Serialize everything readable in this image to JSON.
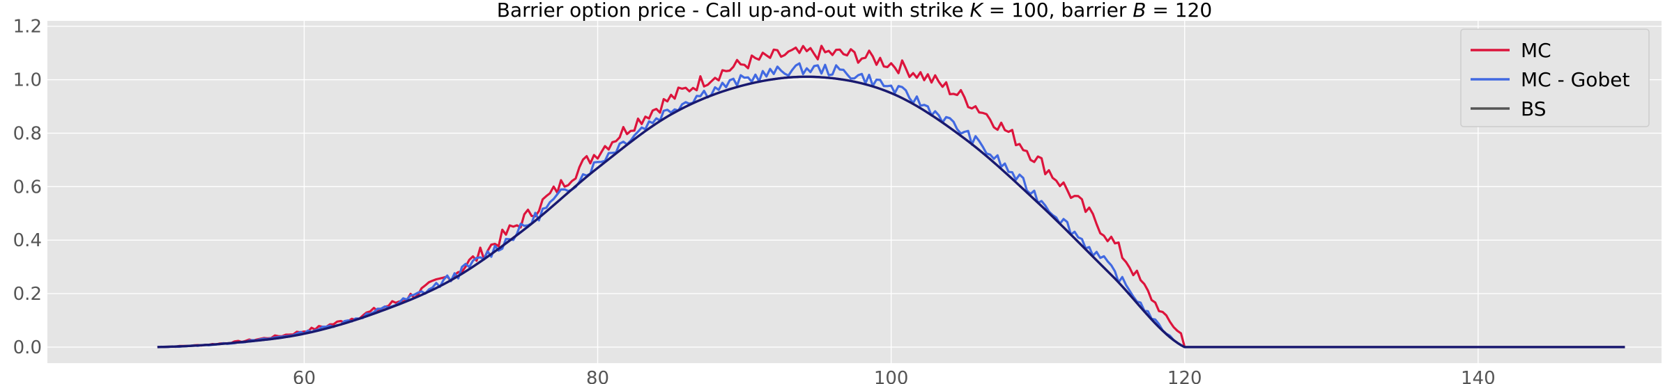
{
  "chart_data": {
    "type": "line",
    "title": "Barrier option price - Call up-and-out with strike K = 100, barrier B = 120",
    "title_parts": {
      "prefix": "Barrier option price - Call up-and-out with strike ",
      "k_symbol": "K",
      "k_value": " = 100, barrier ",
      "b_symbol": "B",
      "b_value": " = 120"
    },
    "xlabel": "",
    "ylabel": "",
    "xlim": [
      42.5,
      152.5
    ],
    "ylim": [
      -0.06,
      1.22
    ],
    "xticks": [
      60,
      80,
      100,
      120,
      140
    ],
    "yticks": [
      0.0,
      0.2,
      0.4,
      0.6,
      0.8,
      1.0,
      1.2
    ],
    "grid": true,
    "legend_position": "top-right",
    "background_color": "#e5e5e5",
    "strike": 100,
    "barrier": 120,
    "x_range": [
      50,
      150
    ],
    "series": [
      {
        "name": "MC",
        "color": "#dc143c",
        "profile": "mc",
        "noise": 0.028,
        "seed": 7
      },
      {
        "name": "MC - Gobet",
        "color": "#4169e1",
        "profile": "gobet",
        "noise": 0.022,
        "seed": 13
      },
      {
        "name": "BS",
        "color": "#555555",
        "profile": "bs",
        "noise": 0,
        "seed": 0
      }
    ],
    "overlay": {
      "color": "#191970",
      "profile": "bs"
    },
    "anchor_points": {
      "bs": {
        "x": [
          50,
          55,
          60,
          65,
          70,
          75,
          80,
          85,
          90,
          95,
          100,
          105,
          110,
          115,
          120,
          150
        ],
        "y": [
          0.0,
          0.015,
          0.05,
          0.13,
          0.25,
          0.44,
          0.67,
          0.87,
          0.98,
          1.01,
          0.95,
          0.78,
          0.54,
          0.27,
          0.0,
          0.0
        ]
      },
      "mc": {
        "x": [
          50,
          55,
          60,
          65,
          70,
          75,
          80,
          85,
          90,
          95,
          100,
          105,
          110,
          115,
          120,
          150
        ],
        "y": [
          0.0,
          0.017,
          0.06,
          0.14,
          0.27,
          0.48,
          0.73,
          0.93,
          1.06,
          1.1,
          1.06,
          0.93,
          0.7,
          0.4,
          0.04,
          0.0
        ]
      },
      "gobet": {
        "x": [
          50,
          55,
          60,
          65,
          70,
          75,
          80,
          85,
          90,
          95,
          100,
          105,
          110,
          115,
          120,
          150
        ],
        "y": [
          0.0,
          0.015,
          0.055,
          0.135,
          0.26,
          0.45,
          0.69,
          0.89,
          1.0,
          1.04,
          0.97,
          0.8,
          0.56,
          0.29,
          0.0,
          0.0
        ]
      }
    }
  }
}
